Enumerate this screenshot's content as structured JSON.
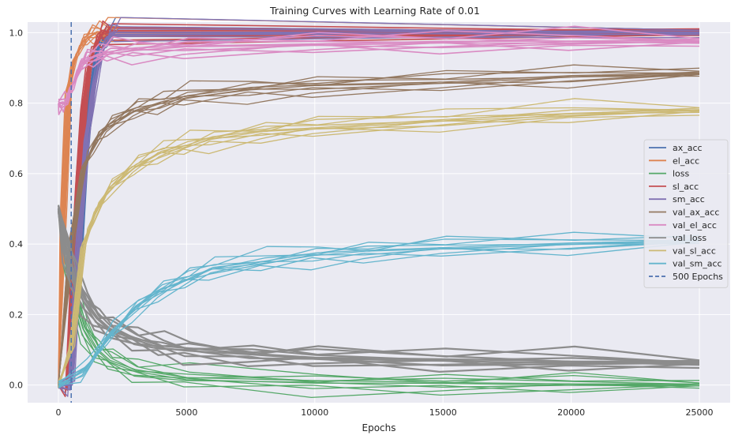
{
  "chart_data": {
    "type": "line",
    "title": "Training Curves with Learning Rate of 0.01",
    "xlabel": "Epochs",
    "ylabel": "",
    "xlim": [
      -1200,
      26200
    ],
    "ylim": [
      -0.05,
      1.03
    ],
    "xticks": [
      0,
      5000,
      10000,
      15000,
      20000,
      25000
    ],
    "yticks": [
      0.0,
      0.2,
      0.4,
      0.6,
      0.8,
      1.0
    ],
    "xtick_labels": [
      "0",
      "5000",
      "10000",
      "15000",
      "20000",
      "25000"
    ],
    "ytick_labels": [
      "0.0",
      "0.2",
      "0.4",
      "0.6",
      "0.8",
      "1.0"
    ],
    "grid": true,
    "legend_position": "center-right",
    "vline": {
      "name": "500 Epochs",
      "x": 500,
      "color": "#4c72b0",
      "style": "dashed"
    },
    "series": [
      {
        "name": "ax_acc",
        "color": "#4c72b0",
        "runs": 10,
        "x": [
          0,
          400,
          700,
          1000,
          1200,
          1500,
          1800,
          2100,
          25000
        ],
        "y": [
          0.0,
          0.0,
          0.2,
          0.6,
          0.8,
          0.95,
          0.99,
          1.0,
          1.0
        ]
      },
      {
        "name": "el_acc",
        "color": "#dd8452",
        "runs": 10,
        "x": [
          0,
          200,
          400,
          600,
          900,
          1200,
          1500,
          1800,
          25000
        ],
        "y": [
          0.0,
          0.5,
          0.84,
          0.92,
          0.97,
          0.99,
          1.0,
          1.0,
          1.0
        ]
      },
      {
        "name": "loss",
        "color": "#55a868",
        "runs": 10,
        "x": [
          0,
          300,
          600,
          1000,
          1500,
          2000,
          3000,
          5000,
          10000,
          15000,
          20000,
          25000
        ],
        "y": [
          0.5,
          0.38,
          0.26,
          0.16,
          0.1,
          0.07,
          0.04,
          0.02,
          0.008,
          0.005,
          0.003,
          0.002
        ]
      },
      {
        "name": "sl_acc",
        "color": "#c44e52",
        "runs": 10,
        "x": [
          0,
          400,
          600,
          800,
          1000,
          1200,
          1400,
          1600,
          1800,
          2000,
          25000
        ],
        "y": [
          0.0,
          0.0,
          0.3,
          0.6,
          0.8,
          0.9,
          0.96,
          0.99,
          1.0,
          1.0,
          1.0
        ]
      },
      {
        "name": "sm_acc",
        "color": "#8172b3",
        "runs": 10,
        "x": [
          0,
          500,
          800,
          1100,
          1400,
          1700,
          2000,
          2300,
          25000
        ],
        "y": [
          0.0,
          0.0,
          0.4,
          0.7,
          0.85,
          0.95,
          0.99,
          1.0,
          1.0
        ]
      },
      {
        "name": "val_ax_acc",
        "color": "#937860",
        "runs": 10,
        "x": [
          0,
          500,
          1000,
          1500,
          2000,
          3000,
          4000,
          5000,
          7500,
          10000,
          15000,
          20000,
          25000
        ],
        "y": [
          0.0,
          0.4,
          0.62,
          0.7,
          0.74,
          0.78,
          0.8,
          0.82,
          0.84,
          0.85,
          0.86,
          0.875,
          0.885
        ]
      },
      {
        "name": "val_el_acc",
        "color": "#da8bc3",
        "runs": 10,
        "x": [
          0,
          150,
          300,
          500,
          800,
          1000,
          1500,
          2000,
          3000,
          5000,
          10000,
          15000,
          20000,
          25000
        ],
        "y": [
          0.8,
          0.8,
          0.8,
          0.84,
          0.9,
          0.92,
          0.935,
          0.945,
          0.952,
          0.96,
          0.968,
          0.972,
          0.975,
          0.976
        ]
      },
      {
        "name": "val_loss",
        "color": "#8c8c8c",
        "runs": 10,
        "x": [
          0,
          300,
          600,
          1000,
          1500,
          2000,
          3000,
          4000,
          5000,
          7500,
          10000,
          15000,
          20000,
          25000
        ],
        "y": [
          0.5,
          0.38,
          0.3,
          0.24,
          0.19,
          0.16,
          0.13,
          0.11,
          0.1,
          0.087,
          0.078,
          0.07,
          0.066,
          0.063
        ]
      },
      {
        "name": "val_sl_acc",
        "color": "#ccb974",
        "runs": 10,
        "x": [
          0,
          500,
          1000,
          1500,
          2000,
          3000,
          4000,
          5000,
          6000,
          8000,
          10000,
          15000,
          20000,
          25000
        ],
        "y": [
          0.0,
          0.1,
          0.4,
          0.5,
          0.56,
          0.62,
          0.66,
          0.68,
          0.7,
          0.72,
          0.73,
          0.75,
          0.77,
          0.78
        ]
      },
      {
        "name": "val_sm_acc",
        "color": "#64b5cd",
        "runs": 10,
        "x": [
          0,
          1000,
          2000,
          3000,
          4000,
          5000,
          6000,
          8000,
          10000,
          12000,
          15000,
          20000,
          25000
        ],
        "y": [
          0.0,
          0.04,
          0.14,
          0.22,
          0.27,
          0.3,
          0.33,
          0.35,
          0.37,
          0.38,
          0.39,
          0.4,
          0.41
        ]
      }
    ]
  }
}
